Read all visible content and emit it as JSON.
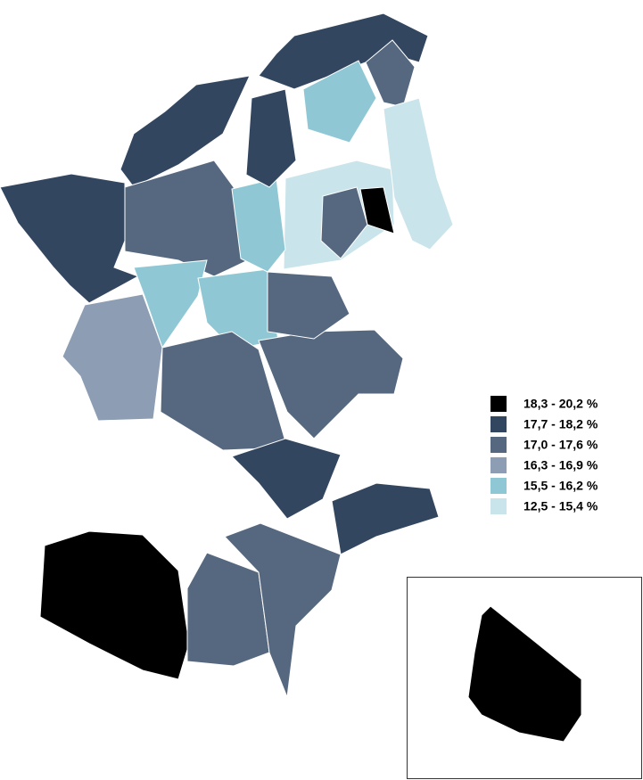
{
  "legend": [
    {
      "label": "18,3 - 20,2 %",
      "color": "#000000"
    },
    {
      "label": "17,7 - 18,2 %",
      "color": "#334660"
    },
    {
      "label": "17,0 - 17,6 %",
      "color": "#56687f"
    },
    {
      "label": "16,3 - 16,9 %",
      "color": "#8d9db3"
    },
    {
      "label": "15,5 - 16,2 %",
      "color": "#8fc8d4"
    },
    {
      "label": "12,5 - 15,4 %",
      "color": "#c9e4ea"
    }
  ]
}
